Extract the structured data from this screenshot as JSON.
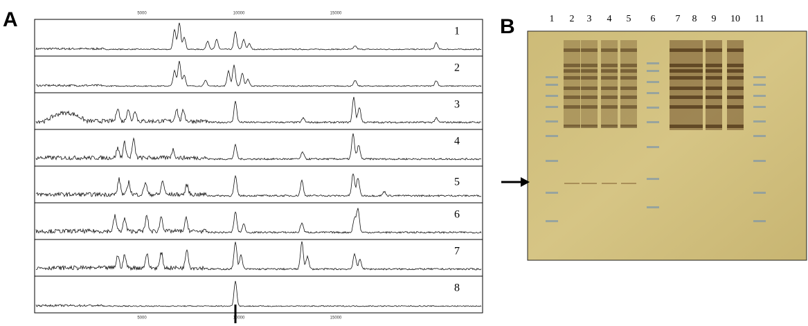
{
  "panel_a": {
    "label": "A",
    "x_axis_top": [
      "5000",
      "10000",
      "15000"
    ],
    "x_axis_bottom": [
      "5000",
      "10000",
      "15000"
    ],
    "spectra": [
      "1",
      "2",
      "3",
      "4",
      "5",
      "6",
      "7",
      "8"
    ]
  },
  "panel_b": {
    "label": "B",
    "lanes": [
      "1",
      "2",
      "3",
      "4",
      "5",
      "6",
      "7",
      "8",
      "9",
      "10",
      "11"
    ]
  }
}
